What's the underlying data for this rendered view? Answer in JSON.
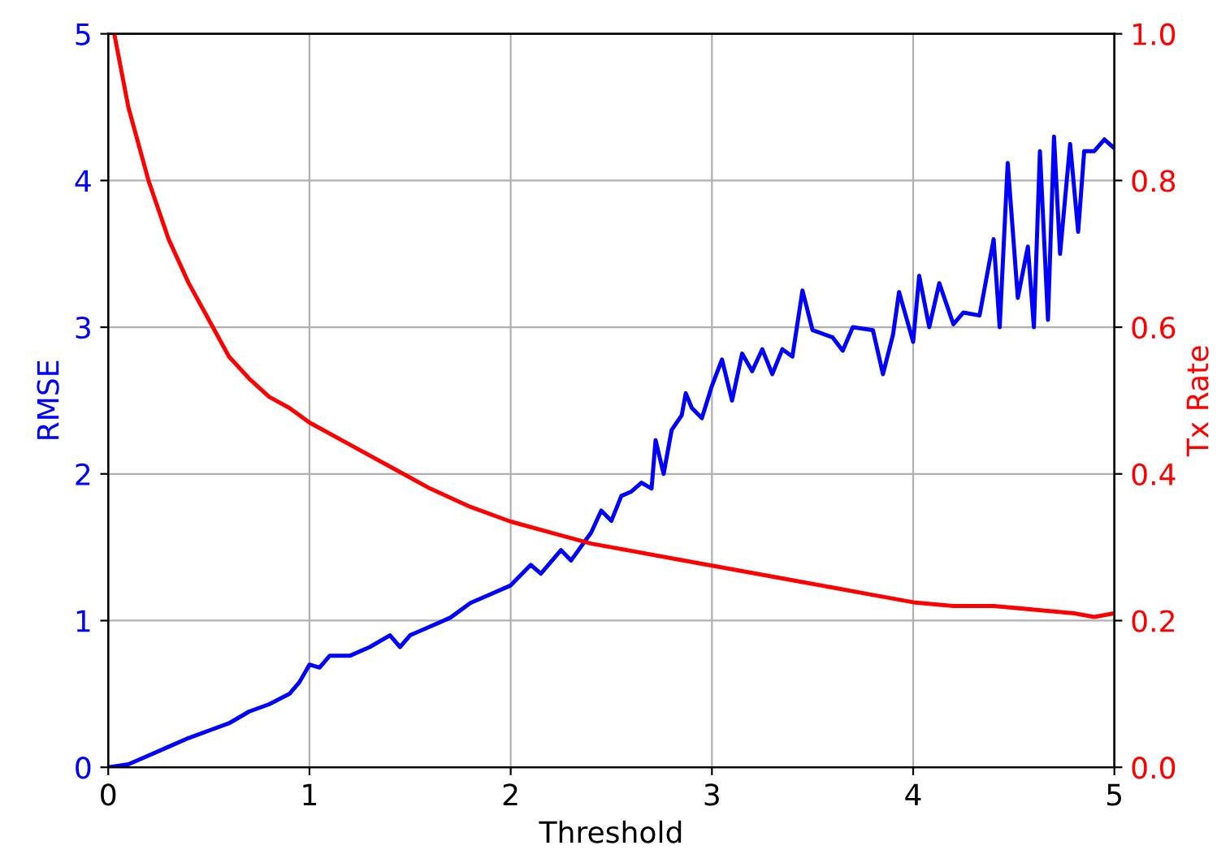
{
  "chart_data": {
    "type": "line",
    "xlabel": "Threshold",
    "ylabel": "RMSE",
    "y2label": "Tx Rate",
    "xlim": [
      0,
      5
    ],
    "xticks": [
      0,
      1,
      2,
      3,
      4,
      5
    ],
    "ylim": [
      0,
      5
    ],
    "yticks": [
      0,
      1,
      2,
      3,
      4,
      5
    ],
    "y2lim": [
      0,
      1.0
    ],
    "y2ticks": [
      {
        "value": 0,
        "label": "0.0"
      },
      0.2,
      0.4,
      0.6,
      0.8,
      {
        "value": 1,
        "label": "1.0"
      }
    ],
    "grid": true,
    "legend": false,
    "series": [
      {
        "color": "#0000ff",
        "x": [
          0,
          0.1,
          0.2,
          0.3,
          0.4,
          0.5,
          0.6,
          0.7,
          0.8,
          0.9,
          0.95,
          1.0,
          1.05,
          1.1,
          1.2,
          1.3,
          1.4,
          1.45,
          1.5,
          1.6,
          1.7,
          1.8,
          1.9,
          2.0,
          2.1,
          2.15,
          2.25,
          2.3,
          2.4,
          2.45,
          2.5,
          2.55,
          2.6,
          2.65,
          2.7,
          2.72,
          2.76,
          2.8,
          2.85,
          2.87,
          2.9,
          2.95,
          3.0,
          3.05,
          3.1,
          3.15,
          3.2,
          3.25,
          3.3,
          3.35,
          3.4,
          3.45,
          3.5,
          3.6,
          3.65,
          3.7,
          3.8,
          3.85,
          3.9,
          3.93,
          4.0,
          4.03,
          4.08,
          4.13,
          4.2,
          4.25,
          4.33,
          4.4,
          4.43,
          4.47,
          4.52,
          4.57,
          4.6,
          4.63,
          4.67,
          4.7,
          4.73,
          4.78,
          4.82,
          4.85,
          4.9,
          4.95,
          5.0
        ],
        "values": [
          0,
          0.02,
          0.08,
          0.14,
          0.2,
          0.25,
          0.3,
          0.38,
          0.43,
          0.5,
          0.58,
          0.7,
          0.68,
          0.76,
          0.76,
          0.82,
          0.9,
          0.82,
          0.9,
          0.96,
          1.02,
          1.12,
          1.18,
          1.24,
          1.38,
          1.32,
          1.48,
          1.41,
          1.6,
          1.75,
          1.68,
          1.85,
          1.88,
          1.94,
          1.9,
          2.23,
          2.0,
          2.3,
          2.4,
          2.55,
          2.45,
          2.38,
          2.6,
          2.78,
          2.5,
          2.82,
          2.7,
          2.85,
          2.68,
          2.85,
          2.8,
          3.25,
          2.98,
          2.93,
          2.84,
          3.0,
          2.98,
          2.68,
          2.95,
          3.24,
          2.9,
          3.35,
          3.0,
          3.3,
          3.02,
          3.1,
          3.08,
          3.6,
          3.0,
          4.12,
          3.2,
          3.55,
          3.0,
          4.2,
          3.05,
          4.3,
          3.5,
          4.25,
          3.65,
          4.2,
          4.2,
          4.28,
          4.22
        ]
      },
      {
        "color": "#ff0000",
        "axis": "y2",
        "x": [
          0.03,
          0.1,
          0.2,
          0.3,
          0.4,
          0.5,
          0.6,
          0.7,
          0.8,
          0.9,
          1.0,
          1.2,
          1.4,
          1.6,
          1.8,
          2.0,
          2.2,
          2.4,
          2.6,
          2.8,
          3.0,
          3.2,
          3.4,
          3.6,
          3.8,
          4.0,
          4.2,
          4.4,
          4.6,
          4.8,
          4.9,
          5.0
        ],
        "values": [
          1.0,
          0.9,
          0.8,
          0.72,
          0.66,
          0.61,
          0.56,
          0.53,
          0.505,
          0.49,
          0.47,
          0.44,
          0.41,
          0.38,
          0.355,
          0.335,
          0.32,
          0.305,
          0.295,
          0.285,
          0.275,
          0.265,
          0.255,
          0.245,
          0.235,
          0.225,
          0.22,
          0.22,
          0.215,
          0.21,
          0.205,
          0.21
        ]
      }
    ]
  }
}
